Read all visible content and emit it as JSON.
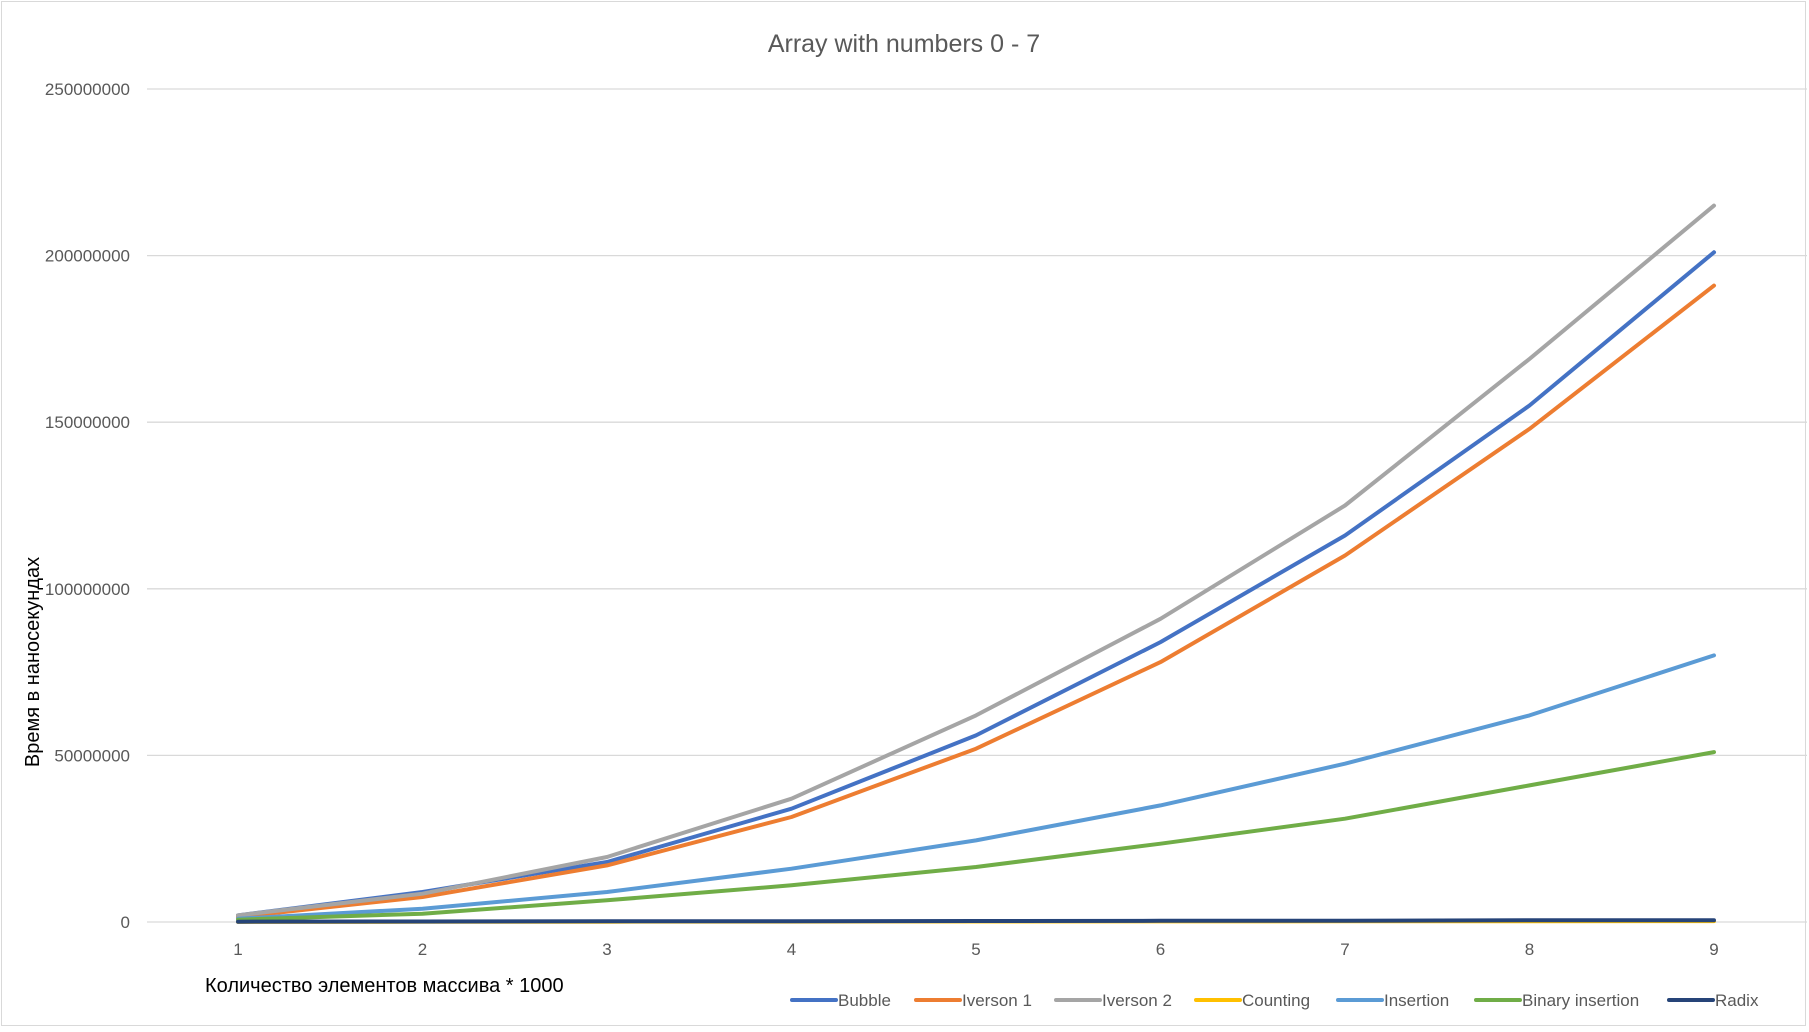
{
  "chart_data": {
    "type": "line",
    "title": "Array with numbers 0 - 7",
    "xlabel": "Количество элементов массива * 1000",
    "ylabel": "Время в наносекундах",
    "categories": [
      "1",
      "2",
      "3",
      "4",
      "5",
      "6",
      "7",
      "8",
      "9"
    ],
    "yticks": [
      "0",
      "50000000",
      "100000000",
      "150000000",
      "200000000",
      "250000000"
    ],
    "ylim": [
      0,
      250000000
    ],
    "grid": true,
    "legend_position": "bottom",
    "series": [
      {
        "name": "Bubble",
        "color": "#4472c4",
        "values": [
          2000000,
          9000000,
          18000000,
          34000000,
          56000000,
          84000000,
          116000000,
          155000000,
          201000000
        ]
      },
      {
        "name": "Iverson 1",
        "color": "#ed7d31",
        "values": [
          1500000,
          7500000,
          17000000,
          31500000,
          52000000,
          78000000,
          110000000,
          148000000,
          191000000
        ]
      },
      {
        "name": "Iverson 2",
        "color": "#a5a5a5",
        "values": [
          2000000,
          8500000,
          19500000,
          37000000,
          62000000,
          91000000,
          125000000,
          169000000,
          215000000
        ]
      },
      {
        "name": "Counting",
        "color": "#ffc000",
        "values": [
          30000,
          60000,
          90000,
          120000,
          150000,
          180000,
          210000,
          240000,
          270000
        ]
      },
      {
        "name": "Insertion",
        "color": "#5b9bd5",
        "values": [
          1000000,
          4000000,
          9000000,
          16000000,
          24500000,
          35000000,
          47500000,
          62000000,
          80000000
        ]
      },
      {
        "name": "Binary insertion",
        "color": "#70ad47",
        "values": [
          700000,
          2500000,
          6500000,
          11000000,
          16500000,
          23500000,
          31000000,
          41000000,
          51000000
        ]
      },
      {
        "name": "Radix",
        "color": "#264478",
        "values": [
          100000,
          150000,
          200000,
          250000,
          300000,
          350000,
          400000,
          500000,
          550000
        ]
      }
    ]
  }
}
